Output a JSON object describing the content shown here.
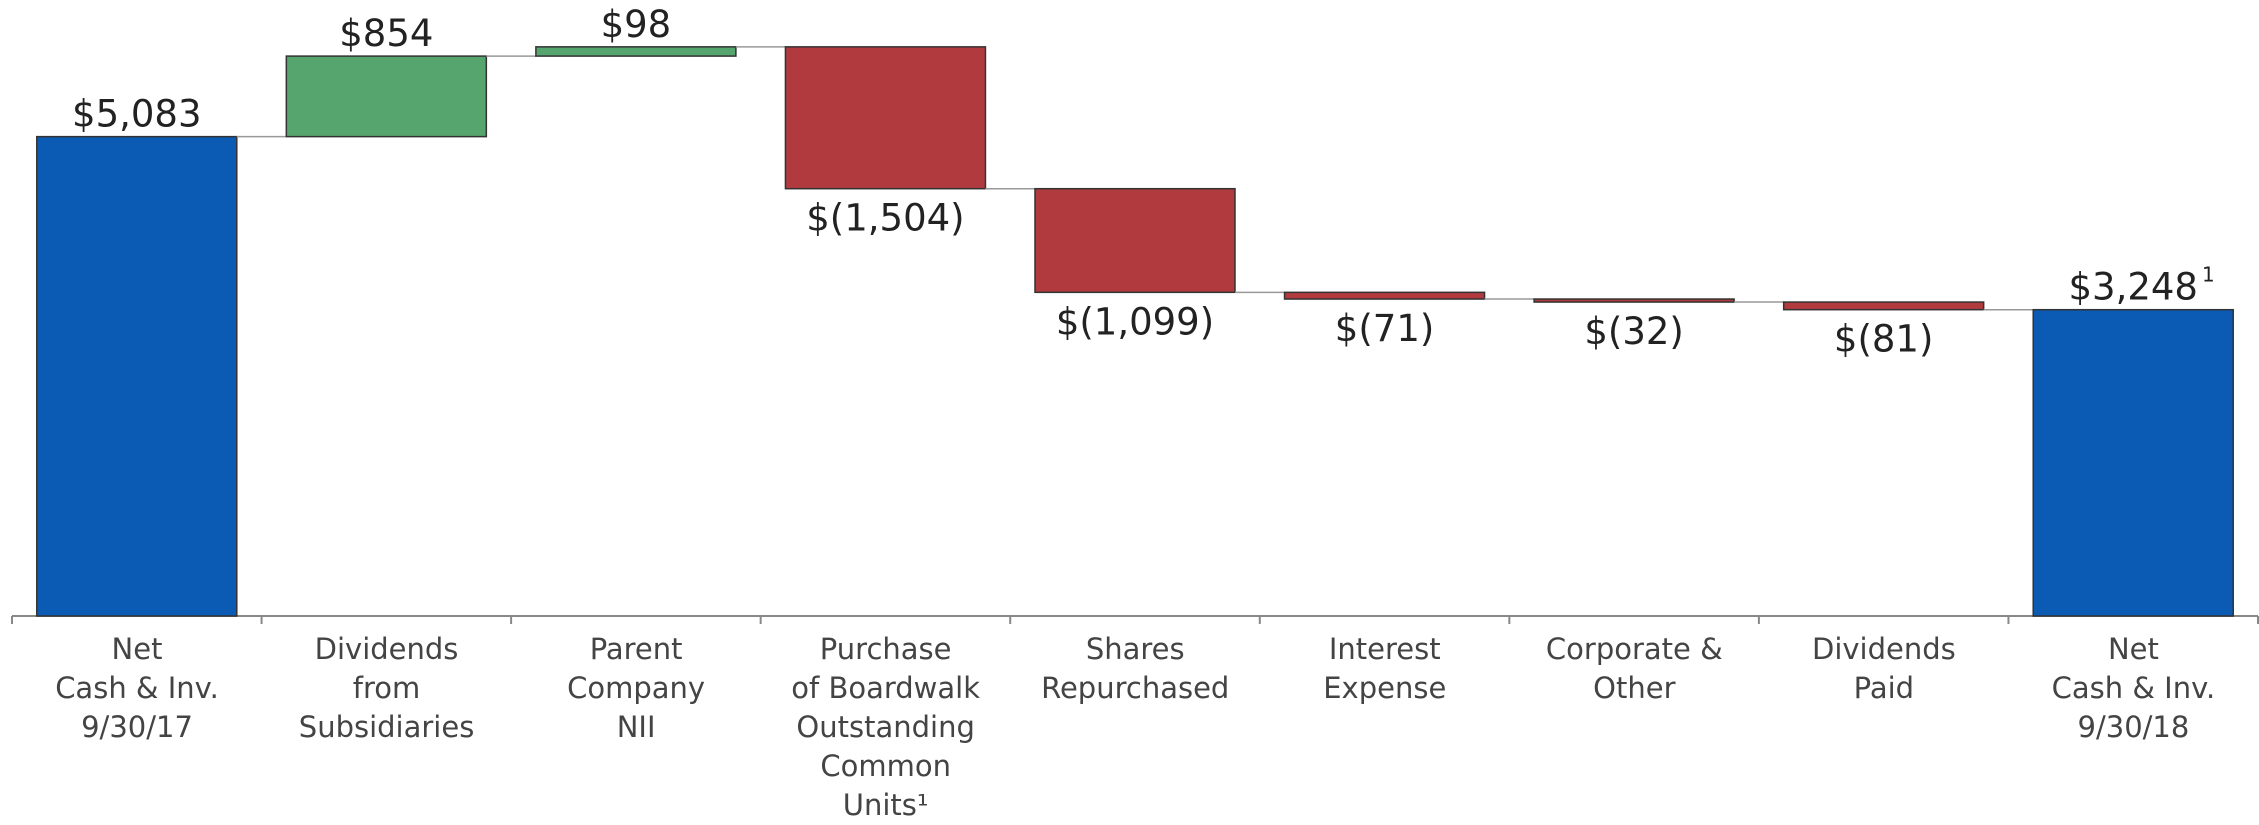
{
  "chart_data": {
    "type": "waterfall",
    "categories": [
      "Net\nCash & Inv.\n9/30/17",
      "Dividends\nfrom\nSubsidiaries",
      "Parent\nCompany\nNII",
      "Purchase\nof Boardwalk\nOutstanding\nCommon\nUnits¹",
      "Shares\nRepurchased",
      "Interest\nExpense",
      "Corporate &\nOther",
      "Dividends\nPaid",
      "Net\nCash & Inv.\n9/30/18"
    ],
    "values": [
      5083,
      854,
      98,
      -1504,
      -1099,
      -71,
      -32,
      -81,
      3248
    ],
    "value_labels": [
      "$5,083",
      "$854",
      "$98",
      "$(1,504)",
      "$(1,099)",
      "$(71)",
      "$(32)",
      "$(81)",
      "$3,248"
    ],
    "value_label_notes": [
      null,
      null,
      null,
      null,
      null,
      null,
      null,
      null,
      "1"
    ],
    "colors": [
      "#0b5bb5",
      "#56a56e",
      "#56a56e",
      "#b03a3e",
      "#b03a3e",
      "#b03a3e",
      "#b03a3e",
      "#b03a3e",
      "#0b5bb5"
    ],
    "ylim": [
      0,
      6500
    ]
  }
}
